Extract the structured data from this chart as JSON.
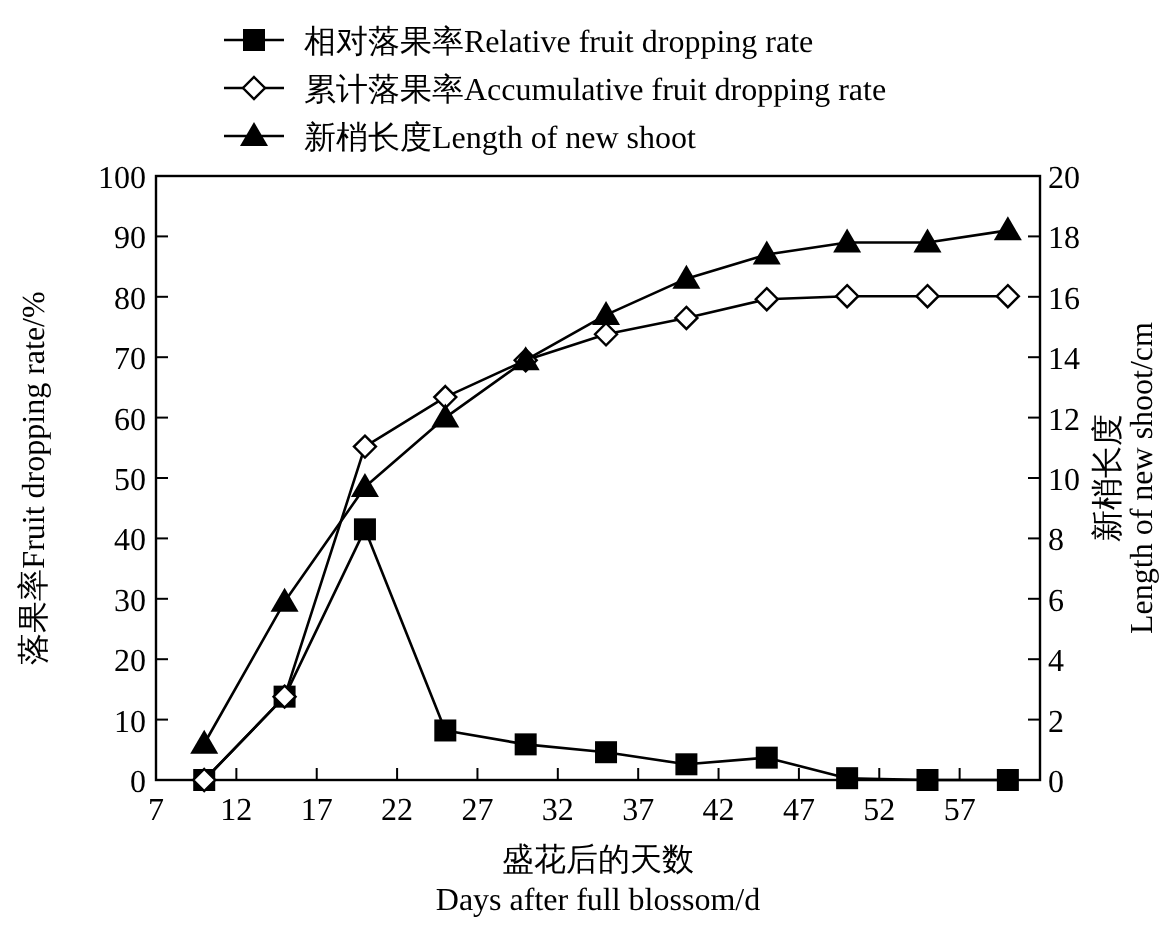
{
  "chart_data": {
    "type": "line",
    "xlabel": "盛花后的天数\nDays after full blossom/d",
    "ylabel": "落果率Fruit dropping rate/%",
    "y2label": "新梢长度\nLength of new shoot/cm",
    "x": [
      10,
      15,
      20,
      25,
      30,
      35,
      40,
      45,
      50,
      55,
      60
    ],
    "series": [
      {
        "name": "相对落果率Relative fruit dropping rate",
        "color": "#000000",
        "marker": "square",
        "values": [
          0,
          13.8,
          41.5,
          8.2,
          5.9,
          4.6,
          2.6,
          3.7,
          0.3,
          0,
          0
        ]
      },
      {
        "name": "累计落果率Accumulative fruit dropping rate",
        "color": "#000000",
        "marker": "diamond",
        "values": [
          0,
          13.8,
          55.2,
          63.4,
          69.5,
          73.8,
          76.5,
          79.6,
          80.1,
          80.1,
          80.1
        ]
      },
      {
        "name": "新梢长度Length of new shoot",
        "color": "#000000",
        "marker": "triangle",
        "axis": "y2",
        "values": [
          1.2,
          5.9,
          9.7,
          12.0,
          13.9,
          15.4,
          16.6,
          17.4,
          17.8,
          17.8,
          18.2
        ]
      }
    ],
    "xlim": [
      7,
      62
    ],
    "xticks": [
      7,
      12,
      17,
      22,
      27,
      32,
      37,
      42,
      47,
      52,
      57
    ],
    "ylim": [
      0,
      100
    ],
    "yticks": [
      0,
      10,
      20,
      30,
      40,
      50,
      60,
      70,
      80,
      90,
      100
    ],
    "y2lim": [
      0,
      20
    ],
    "y2ticks": [
      0,
      2,
      4,
      6,
      8,
      10,
      12,
      14,
      16,
      18,
      20
    ],
    "legend": "top",
    "grid": false,
    "line_style": "solid"
  }
}
